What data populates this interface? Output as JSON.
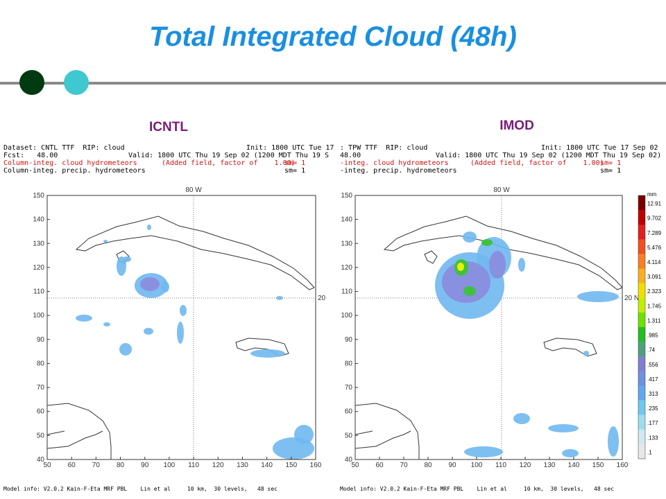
{
  "header": {
    "title": "Total Integrated Cloud (48h)"
  },
  "axes": {
    "xlim": [
      50,
      160
    ],
    "ylim": [
      40,
      150
    ],
    "xticks": [
      50,
      60,
      70,
      80,
      90,
      100,
      110,
      120,
      130,
      140,
      150,
      160
    ],
    "yticks": [
      40,
      50,
      60,
      70,
      80,
      90,
      100,
      110,
      120,
      130,
      140,
      150
    ]
  },
  "panels": [
    {
      "label": "ICNTL",
      "lon_label": "80 W",
      "lat_label": "20",
      "header": [
        [
          "Dataset: CNTL TTF  RIP: cloud",
          "Init: 1800 UTC Tue 17"
        ],
        [
          "Fcst:   48.00",
          "Valid: 1800 UTC Thu 19 Sep 02 (1200 MDT Thu 19 S"
        ],
        [
          "Column-integ. cloud hydrometeors",
          "(Added field, factor of    1.00)",
          "sm= 1"
        ],
        [
          "Column-integ. precip. hydrometeors",
          "sm= 1"
        ]
      ],
      "footer": "Model info: V2.0.2 Kain-F-Eta MRF PBL    Lin et al     10 km,  30 levels,   48 sec"
    },
    {
      "label": "IMOD",
      "lon_label": "80 W",
      "lat_label": "20 N",
      "header": [
        [
          ": TPW TTF  RIP: cloud",
          "Init: 1800 UTC Tue 17 Sep 02"
        ],
        [
          "48.00",
          "Valid: 1800 UTC Thu 19 Sep 02 (1200 MDT Thu 19 Sep 02)"
        ],
        [
          "-integ. cloud hydrometeors",
          "(Added field, factor of    1.00)",
          "sm= 1"
        ],
        [
          "-integ. precip. hydrometeors",
          "sm= 1"
        ]
      ],
      "footer": "Model info: V2.0.2 Kain-F-Eta MRF PBL    Lin et al     10 km,  30 levels,   48 sec"
    }
  ],
  "colorbar": {
    "unit": "mm",
    "labels": [
      "12.91",
      "9.702",
      "7.289",
      "5.476",
      "4.114",
      "3.091",
      "2.323",
      "1.745",
      "1.311",
      ".985",
      ".74",
      ".556",
      ".417",
      ".313",
      ".235",
      ".177",
      ".133",
      ".1"
    ],
    "colors": [
      "#7a0000",
      "#c00000",
      "#e02020",
      "#f05020",
      "#f88020",
      "#f8b020",
      "#f0e000",
      "#c0f000",
      "#70e000",
      "#20c020",
      "#50a080",
      "#8080d0",
      "#7090e0",
      "#60a8f0",
      "#70c8f0",
      "#a0dcf0",
      "#d0e8f0",
      "#e8e8e8"
    ]
  }
}
